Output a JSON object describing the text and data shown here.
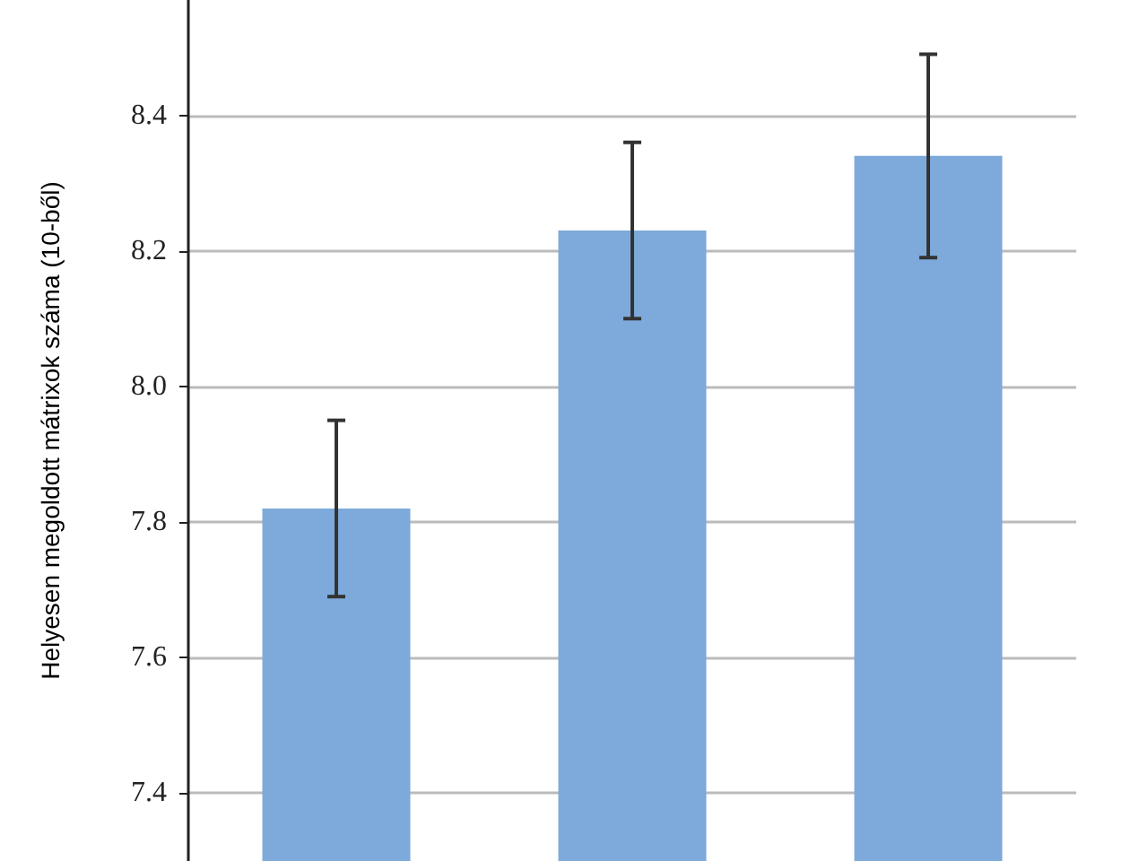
{
  "chart_data": {
    "type": "bar",
    "ylabel": "Helyesen megoldott mátrixok száma (10-ből)",
    "categories": [
      null,
      null,
      null
    ],
    "values": [
      7.82,
      8.23,
      8.34
    ],
    "color": "#7eaadb",
    "errors": [
      0.13,
      0.13,
      0.15
    ],
    "ylim": [
      7.3,
      8.57
    ],
    "yticks": [
      7.4,
      7.6,
      7.8,
      {
        "value": 8,
        "label": "8.0"
      },
      8.2,
      8.4
    ],
    "grid": "y",
    "tick_labels": "y"
  }
}
